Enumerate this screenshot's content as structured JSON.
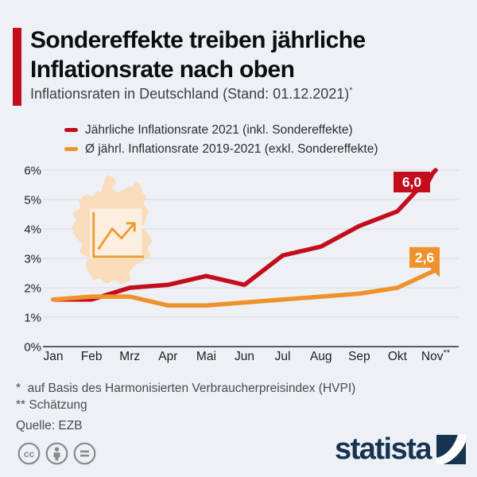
{
  "header": {
    "title_line1": "Sondereffekte treiben jährliche",
    "title_line2": "Inflationsrate nach oben",
    "subtitle": "Inflationsraten in Deutschland (Stand: 01.12.2021)",
    "subtitle_marker": "*"
  },
  "legend": {
    "items": [
      {
        "label": "Jährliche Inflationsrate 2021 (inkl. Sondereffekte)",
        "color": "#c30d1d"
      },
      {
        "label": "Ø jährl. Inflationsrate 2019-2021 (exkl. Sondereffekte)",
        "color": "#f0922b"
      }
    ]
  },
  "chart_data": {
    "type": "line",
    "title": "Inflationsraten in Deutschland (Stand: 01.12.2021)",
    "categories": [
      "Jan",
      "Feb",
      "Mrz",
      "Apr",
      "Mai",
      "Jun",
      "Jul",
      "Aug",
      "Sep",
      "Okt",
      "Nov**"
    ],
    "series": [
      {
        "name": "Jährliche Inflationsrate 2021 (inkl. Sondereffekte)",
        "color": "#c30d1d",
        "values": [
          1.6,
          1.6,
          2.0,
          2.1,
          2.4,
          2.1,
          3.1,
          3.4,
          4.1,
          4.6,
          6.0
        ],
        "end_label": "6,0"
      },
      {
        "name": "Ø jährl. Inflationsrate 2019-2021 (exkl. Sondereffekte)",
        "color": "#f0922b",
        "values": [
          1.6,
          1.7,
          1.7,
          1.4,
          1.4,
          1.5,
          1.6,
          1.7,
          1.8,
          2.0,
          2.6
        ],
        "end_label": "2,6"
      }
    ],
    "ylim": [
      0,
      6
    ],
    "yticks": [
      "0%",
      "1%",
      "2%",
      "3%",
      "4%",
      "5%",
      "6%"
    ],
    "xlabel": "",
    "ylabel": "",
    "grid": true,
    "legend_position": "top"
  },
  "footnotes": {
    "line1": "*  auf Basis des Harmonisierten Verbraucherpreisindex (HVPI)",
    "line2": "** Schätzung",
    "source": "Quelle: EZB"
  },
  "branding": {
    "logo_text": "statista"
  },
  "colors": {
    "red": "#c30d1d",
    "orange": "#f0922b",
    "background": "#edf1f6",
    "navy": "#16344f",
    "map_fill": "#f8dcbb"
  }
}
